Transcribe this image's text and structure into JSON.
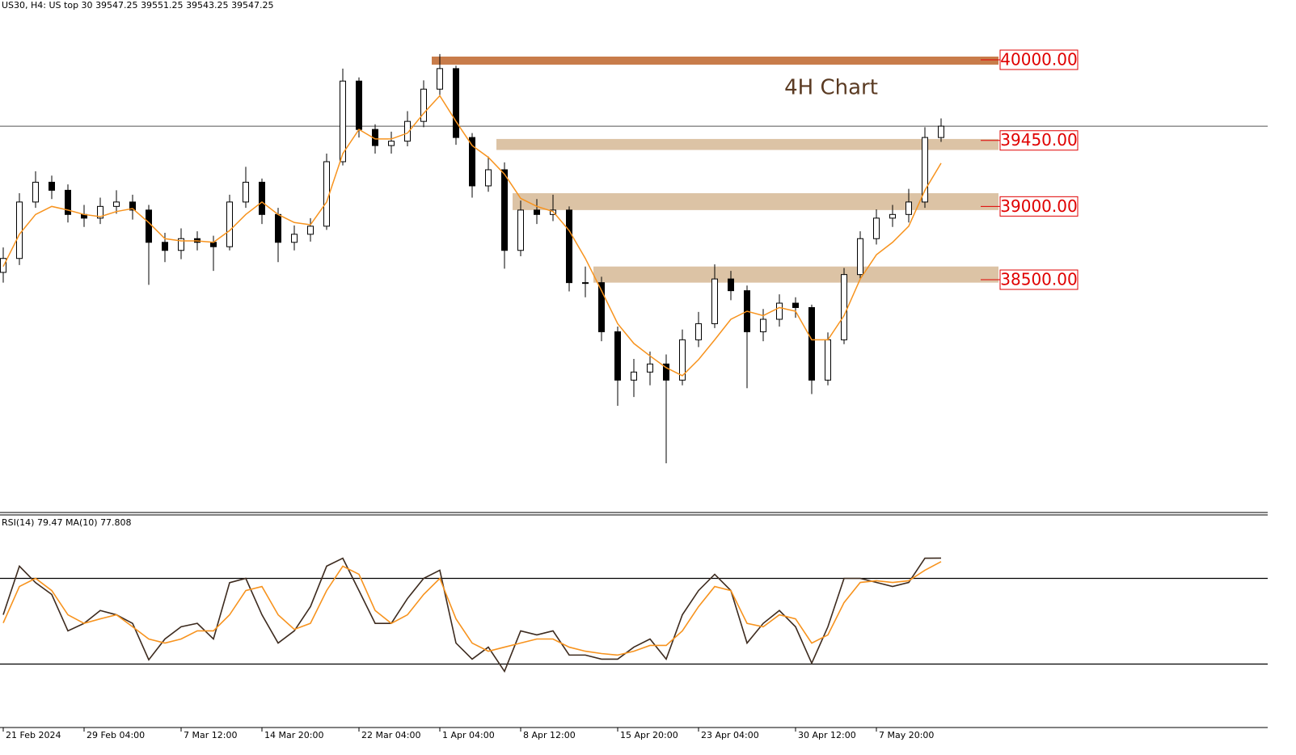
{
  "header": {
    "symbol": "US30, H4:",
    "description": "US top 30",
    "ohlc": [
      39547.25,
      39551.25,
      39543.25,
      39547.25
    ]
  },
  "chart_data": [
    {
      "type": "candlestick",
      "annotation": "4H Chart",
      "categories": [
        "21 Feb 2024",
        null,
        null,
        null,
        null,
        "29 Feb 04:00",
        null,
        null,
        null,
        null,
        null,
        "7 Mar 12:00",
        null,
        null,
        null,
        null,
        "14 Mar 20:00",
        null,
        null,
        null,
        null,
        null,
        "22 Mar 04:00",
        null,
        null,
        null,
        null,
        "1 Apr 04:00",
        null,
        null,
        null,
        null,
        "8 Apr 12:00",
        null,
        null,
        null,
        null,
        null,
        "15 Apr 20:00",
        null,
        null,
        null,
        null,
        "23 Apr 04:00",
        null,
        null,
        null,
        null,
        null,
        "30 Apr 12:00",
        null,
        null,
        null,
        null,
        "7 May 20:00",
        null,
        null,
        null,
        null
      ],
      "open": [
        38550,
        38645,
        39030,
        39165,
        39110,
        38945,
        38920,
        39000,
        39030,
        38975,
        38755,
        38700,
        38780,
        38755,
        38725,
        39030,
        39165,
        38945,
        38755,
        38810,
        38865,
        39305,
        39855,
        39525,
        39415,
        39445,
        39580,
        39800,
        39940,
        39470,
        39140,
        39250,
        38700,
        38975,
        38945,
        38975,
        38480,
        38480,
        38145,
        37815,
        37870,
        37925,
        37815,
        38090,
        38200,
        38505,
        38425,
        38145,
        38230,
        38340,
        38310,
        37815,
        38090,
        38535,
        38780,
        38920,
        38945,
        39030,
        39470
      ],
      "high": [
        38720,
        39090,
        39240,
        39210,
        39150,
        39010,
        39060,
        39110,
        39080,
        39010,
        38820,
        38850,
        38830,
        38800,
        39080,
        39270,
        39190,
        38990,
        38870,
        38920,
        39360,
        39940,
        39880,
        39560,
        39510,
        39650,
        39860,
        40039,
        39960,
        39500,
        39340,
        39300,
        39040,
        39050,
        39080,
        39000,
        38590,
        38520,
        38180,
        37960,
        38010,
        37990,
        38160,
        38280,
        38605,
        38560,
        38460,
        38300,
        38400,
        38380,
        38330,
        38140,
        38580,
        38830,
        38980,
        39010,
        39120,
        39540,
        39600
      ],
      "low": [
        38480,
        38600,
        38990,
        39050,
        38890,
        38860,
        38880,
        38950,
        38910,
        38465,
        38620,
        38640,
        38700,
        38560,
        38700,
        38990,
        38880,
        38620,
        38700,
        38760,
        38840,
        39280,
        39470,
        39360,
        39360,
        39410,
        39540,
        39760,
        39420,
        39060,
        39100,
        38575,
        38660,
        38880,
        38900,
        38420,
        38380,
        38080,
        37640,
        37700,
        37780,
        37248,
        37780,
        38040,
        38170,
        38360,
        37760,
        38080,
        38180,
        38240,
        37720,
        37780,
        38060,
        38500,
        38740,
        38860,
        38890,
        38990,
        39440
      ],
      "close": [
        38645,
        39030,
        39165,
        39110,
        38945,
        38920,
        39000,
        39030,
        38975,
        38755,
        38700,
        38780,
        38755,
        38725,
        39030,
        39165,
        38945,
        38755,
        38810,
        38865,
        39305,
        39855,
        39525,
        39415,
        39445,
        39580,
        39800,
        39940,
        39470,
        39140,
        39250,
        38700,
        38975,
        38945,
        38975,
        38480,
        38480,
        38145,
        37815,
        37870,
        37925,
        37815,
        38090,
        38200,
        38505,
        38425,
        38145,
        38230,
        38340,
        38310,
        37815,
        38090,
        38535,
        38780,
        38920,
        38945,
        39030,
        39470,
        39547.25
      ],
      "series": [
        {
          "color": "#f7931e",
          "values": [
            38590,
            38810,
            38945,
            39000,
            38975,
            38945,
            38930,
            38965,
            38985,
            38890,
            38780,
            38765,
            38765,
            38755,
            38835,
            38945,
            39030,
            38945,
            38890,
            38875,
            39030,
            39360,
            39525,
            39460,
            39460,
            39500,
            39635,
            39755,
            39580,
            39415,
            39335,
            39220,
            39055,
            39000,
            38965,
            38835,
            38645,
            38425,
            38200,
            38065,
            37980,
            37900,
            37845,
            37955,
            38090,
            38230,
            38285,
            38255,
            38310,
            38285,
            38090,
            38090,
            38255,
            38505,
            38670,
            38755,
            38865,
            39110,
            39295
          ]
        }
      ],
      "ylim": [
        36912,
        40408
      ],
      "zones": [
        {
          "value": {
            "value": 40000,
            "label": "40000.00"
          },
          "low": 39967,
          "high": 40022,
          "start": 27,
          "color": "#c87c4a"
        },
        {
          "value": {
            "value": 39450,
            "label": "39450.00"
          },
          "low": 39385,
          "high": 39460,
          "start": 31,
          "color": "#dcc3a5"
        },
        {
          "value": {
            "value": 39000,
            "label": "39000.00"
          },
          "low": 38975,
          "high": 39090,
          "start": 32,
          "color": "#dcc3a5"
        },
        {
          "value": {
            "value": 38500,
            "label": "38500.00"
          },
          "low": 38480,
          "high": 38590,
          "start": 37,
          "color": "#dcc3a5"
        }
      ]
    },
    {
      "type": "line",
      "title": "RSI(14)",
      "last": 79.47,
      "ma_title": "MA(10)",
      "ma_last": 77.808,
      "series": [
        {
          "color": "#3d2b1f",
          "values": [
            53,
            75.7,
            68,
            62.5,
            45.5,
            49,
            55,
            53,
            49,
            32,
            41.7,
            47.4,
            49,
            41.7,
            68,
            70,
            53,
            39.8,
            45.5,
            56.8,
            75.7,
            79.4,
            64.3,
            49,
            49,
            60.6,
            70,
            73.8,
            39.8,
            32.3,
            37.9,
            26.6,
            45.5,
            43.6,
            45.5,
            34.2,
            34.2,
            32.3,
            32.3,
            37.9,
            41.7,
            32.3,
            53,
            64.3,
            71.9,
            64.3,
            39.8,
            49,
            55,
            47.4,
            30.4,
            47.4,
            70,
            70,
            68.1,
            66.2,
            68.1,
            79.4,
            79.47
          ]
        },
        {
          "color": "#f7931e",
          "values": [
            49.2,
            66.2,
            70,
            64.3,
            53,
            49,
            51.1,
            53,
            47.4,
            41.7,
            39.8,
            41.7,
            45.5,
            45.5,
            53,
            64.3,
            66.2,
            53,
            46.2,
            49,
            64.3,
            75.7,
            71.9,
            55,
            49,
            53,
            62.5,
            70,
            51.1,
            39.8,
            36,
            37.9,
            39.8,
            41.7,
            41.7,
            37.9,
            36,
            34.9,
            34.2,
            36,
            38.7,
            38.7,
            45.5,
            56.8,
            66.2,
            64.3,
            49,
            47.4,
            53,
            51.1,
            39.8,
            43.6,
            58.7,
            68.1,
            68.9,
            68.1,
            68.9,
            73.8,
            77.808
          ]
        }
      ],
      "ylim": [
        0,
        100
      ],
      "levels": [
        70,
        30
      ]
    }
  ]
}
